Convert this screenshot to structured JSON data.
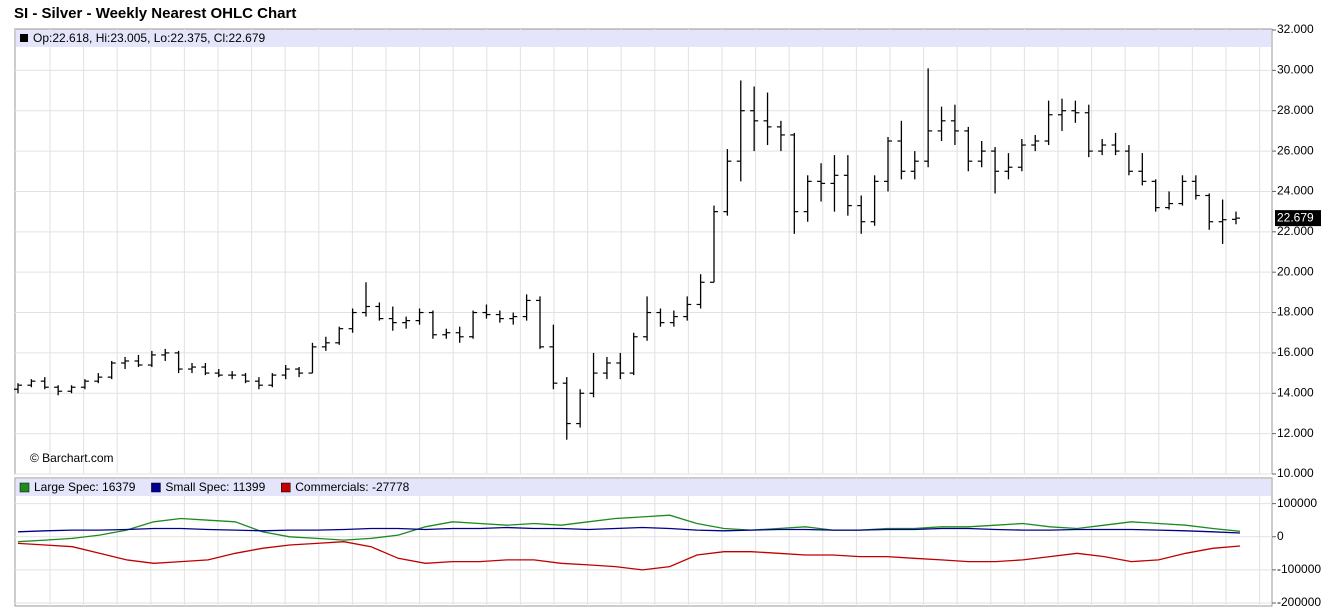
{
  "chart_data": [
    {
      "type": "ohlc",
      "title": "SI - Silver - Weekly Nearest OHLC Chart",
      "info_label": "Op:22.618, Hi:23.005, Lo:22.375, Cl:22.679",
      "credit": "© Barchart.com",
      "color": "#000000",
      "grid": true,
      "open": [
        14.2,
        14.4,
        14.6,
        14.3,
        14.1,
        14.3,
        14.6,
        14.8,
        15.5,
        15.6,
        15.4,
        15.9,
        16.0,
        15.2,
        15.3,
        15.0,
        14.9,
        14.9,
        14.6,
        14.4,
        14.9,
        15.2,
        15.0,
        16.3,
        16.5,
        17.2,
        18.0,
        18.3,
        17.7,
        17.5,
        17.6,
        18.0,
        16.9,
        17.0,
        16.8,
        18.0,
        17.9,
        17.7,
        17.8,
        18.6,
        16.3,
        14.5,
        12.5,
        14.0,
        15.0,
        15.5,
        15.0,
        16.8,
        18.0,
        17.5,
        17.8,
        18.4,
        19.5,
        23.0,
        25.5,
        28.0,
        27.5,
        27.2,
        26.8,
        23.0,
        24.5,
        24.4,
        24.8,
        23.3,
        22.5,
        24.5,
        26.5,
        25.0,
        25.5,
        27.0,
        27.5,
        27.0,
        25.5,
        26.0,
        25.0,
        25.2,
        26.3,
        26.5,
        27.8,
        28.0,
        27.9,
        26.0,
        26.3,
        26.0,
        25.0,
        24.5,
        23.2,
        23.4,
        24.5,
        23.8,
        22.5,
        22.618
      ],
      "high": [
        14.5,
        14.7,
        14.8,
        14.4,
        14.4,
        14.7,
        15.0,
        15.6,
        15.8,
        15.9,
        16.1,
        16.2,
        16.1,
        15.5,
        15.5,
        15.2,
        15.1,
        15.0,
        14.8,
        15.0,
        15.4,
        15.3,
        16.5,
        16.8,
        17.3,
        18.2,
        19.5,
        18.5,
        18.3,
        17.8,
        18.2,
        18.1,
        17.2,
        17.3,
        18.1,
        18.4,
        18.1,
        18.0,
        18.9,
        18.8,
        17.4,
        14.8,
        14.2,
        16.0,
        15.8,
        16.0,
        17.0,
        18.8,
        18.2,
        18.1,
        18.8,
        19.9,
        23.3,
        26.1,
        29.5,
        29.2,
        28.9,
        27.5,
        26.9,
        24.8,
        25.4,
        25.8,
        25.8,
        23.8,
        24.8,
        26.7,
        27.5,
        26.0,
        30.1,
        28.2,
        28.3,
        27.2,
        26.5,
        26.2,
        25.9,
        26.6,
        26.8,
        28.5,
        28.6,
        28.5,
        28.3,
        26.6,
        26.9,
        26.3,
        25.9,
        24.6,
        24.0,
        24.8,
        24.8,
        23.9,
        23.6,
        23.005
      ],
      "low": [
        14.0,
        14.3,
        14.2,
        13.9,
        14.0,
        14.2,
        14.5,
        14.7,
        15.2,
        15.3,
        15.3,
        15.6,
        15.0,
        15.0,
        14.9,
        14.8,
        14.7,
        14.5,
        14.2,
        14.3,
        14.7,
        14.8,
        15.0,
        16.1,
        16.4,
        17.0,
        17.8,
        17.6,
        17.1,
        17.2,
        17.4,
        16.7,
        16.7,
        16.5,
        16.7,
        17.7,
        17.5,
        17.4,
        17.6,
        16.2,
        14.2,
        11.7,
        12.3,
        13.8,
        14.7,
        14.7,
        14.9,
        16.6,
        17.3,
        17.3,
        17.6,
        18.2,
        19.5,
        22.8,
        24.5,
        26.0,
        26.3,
        26.0,
        21.9,
        22.5,
        23.5,
        23.0,
        22.8,
        21.9,
        22.3,
        24.0,
        24.6,
        24.6,
        25.2,
        26.5,
        26.3,
        25.0,
        25.2,
        23.9,
        24.6,
        25.0,
        26.0,
        26.3,
        27.0,
        27.4,
        25.7,
        25.8,
        25.8,
        24.8,
        24.3,
        23.0,
        23.1,
        23.3,
        23.6,
        22.1,
        21.4,
        22.375
      ],
      "close": [
        14.4,
        14.6,
        14.3,
        14.1,
        14.3,
        14.6,
        14.8,
        15.5,
        15.6,
        15.4,
        15.9,
        16.0,
        15.2,
        15.3,
        15.0,
        14.9,
        14.9,
        14.6,
        14.4,
        14.9,
        15.2,
        15.0,
        16.3,
        16.5,
        17.2,
        18.0,
        18.3,
        17.7,
        17.5,
        17.6,
        18.0,
        16.9,
        17.0,
        16.8,
        18.0,
        17.9,
        17.7,
        17.8,
        18.6,
        16.3,
        14.5,
        12.5,
        14.0,
        15.0,
        15.5,
        15.0,
        16.8,
        18.0,
        17.5,
        17.8,
        18.4,
        19.5,
        23.0,
        25.5,
        28.0,
        27.5,
        27.2,
        26.8,
        23.0,
        24.5,
        24.4,
        24.8,
        23.3,
        22.5,
        24.5,
        26.5,
        25.0,
        25.5,
        27.0,
        27.5,
        27.0,
        25.5,
        26.0,
        25.0,
        25.2,
        26.3,
        26.5,
        27.8,
        28.0,
        27.9,
        26.0,
        26.3,
        26.0,
        25.0,
        24.5,
        23.2,
        23.4,
        24.5,
        23.8,
        22.5,
        22.6,
        22.679
      ],
      "last_price": 22.679,
      "ylim": [
        10,
        32
      ],
      "yticks": [
        {
          "value": 32,
          "label": "32.000"
        },
        {
          "value": 30,
          "label": "30.000"
        },
        {
          "value": 28,
          "label": "28.000"
        },
        {
          "value": 26,
          "label": "26.000"
        },
        {
          "value": 24,
          "label": "24.000"
        },
        {
          "value": 22,
          "label": "22.000"
        },
        {
          "value": 20,
          "label": "20.000"
        },
        {
          "value": 18,
          "label": "18.000"
        },
        {
          "value": 16,
          "label": "16.000"
        },
        {
          "value": 14,
          "label": "14.000"
        },
        {
          "value": 12,
          "label": "12.000"
        },
        {
          "value": 10,
          "label": "10.000"
        }
      ]
    },
    {
      "type": "line",
      "grid": true,
      "series": [
        {
          "name": "Large Spec: 16379",
          "color": "#1f8a1f",
          "values": [
            -15000,
            -10000,
            -5000,
            5000,
            20000,
            45000,
            55000,
            50000,
            45000,
            15000,
            0,
            -5000,
            -10000,
            -5000,
            5000,
            30000,
            45000,
            40000,
            35000,
            40000,
            35000,
            45000,
            55000,
            60000,
            65000,
            40000,
            25000,
            20000,
            25000,
            30000,
            20000,
            20000,
            25000,
            25000,
            30000,
            30000,
            35000,
            40000,
            30000,
            25000,
            35000,
            45000,
            40000,
            35000,
            25000,
            16379
          ]
        },
        {
          "name": "Small Spec: 11399",
          "color": "#00008b",
          "values": [
            15000,
            18000,
            20000,
            20000,
            22000,
            25000,
            25000,
            22000,
            20000,
            18000,
            20000,
            20000,
            22000,
            25000,
            25000,
            22000,
            25000,
            25000,
            28000,
            25000,
            25000,
            22000,
            25000,
            28000,
            25000,
            20000,
            18000,
            20000,
            22000,
            22000,
            20000,
            20000,
            22000,
            22000,
            25000,
            25000,
            22000,
            20000,
            20000,
            22000,
            22000,
            22000,
            20000,
            18000,
            15000,
            11399
          ]
        },
        {
          "name": "Commercials: -27778",
          "color": "#c00000",
          "values": [
            -20000,
            -25000,
            -30000,
            -50000,
            -70000,
            -80000,
            -75000,
            -70000,
            -50000,
            -35000,
            -25000,
            -20000,
            -15000,
            -30000,
            -65000,
            -80000,
            -75000,
            -75000,
            -70000,
            -70000,
            -80000,
            -85000,
            -90000,
            -100000,
            -90000,
            -55000,
            -45000,
            -45000,
            -50000,
            -55000,
            -55000,
            -60000,
            -60000,
            -65000,
            -70000,
            -75000,
            -75000,
            -70000,
            -60000,
            -50000,
            -60000,
            -75000,
            -70000,
            -50000,
            -35000,
            -27778
          ]
        }
      ],
      "ylim": [
        -200000,
        120000
      ],
      "yticks": [
        100000,
        0,
        -100000,
        -200000
      ]
    }
  ]
}
